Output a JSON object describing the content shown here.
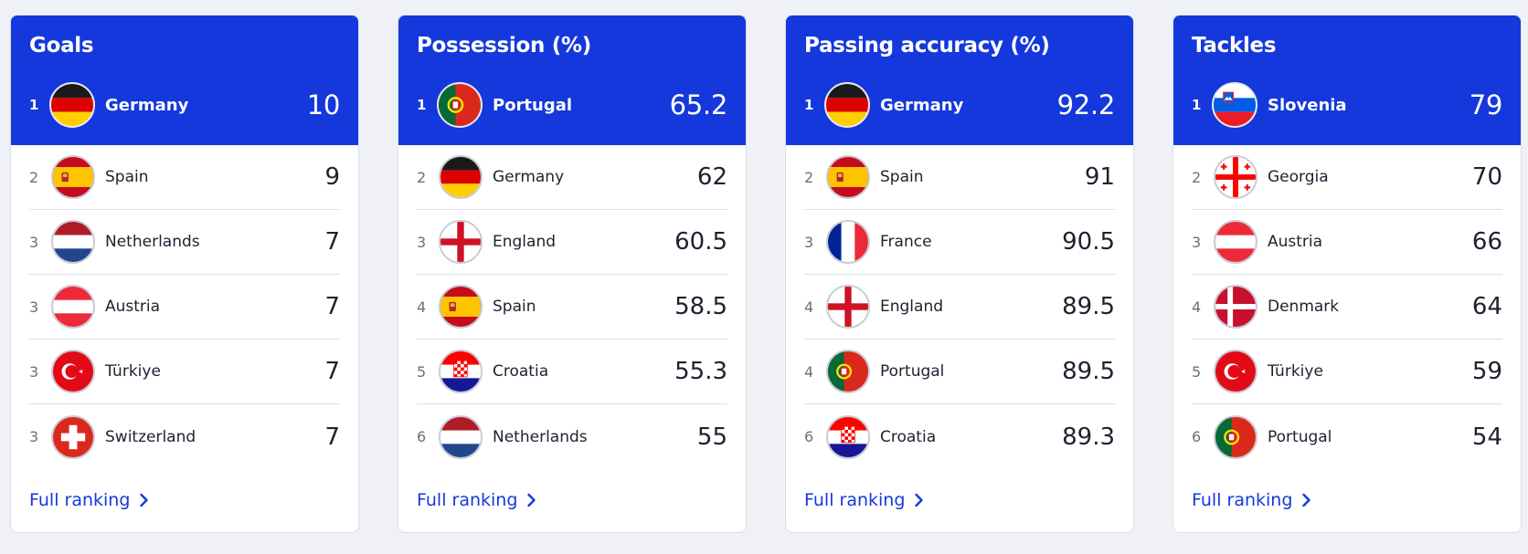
{
  "cards": [
    {
      "title": "Goals",
      "leader": {
        "rank": "1",
        "team": "Germany",
        "flag": "germany",
        "value": "10"
      },
      "rows": [
        {
          "rank": "2",
          "team": "Spain",
          "flag": "spain",
          "value": "9"
        },
        {
          "rank": "3",
          "team": "Netherlands",
          "flag": "netherlands",
          "value": "7"
        },
        {
          "rank": "3",
          "team": "Austria",
          "flag": "austria",
          "value": "7"
        },
        {
          "rank": "3",
          "team": "Türkiye",
          "flag": "turkiye",
          "value": "7"
        },
        {
          "rank": "3",
          "team": "Switzerland",
          "flag": "switzerland",
          "value": "7"
        }
      ],
      "link": "Full ranking"
    },
    {
      "title": "Possession (%)",
      "leader": {
        "rank": "1",
        "team": "Portugal",
        "flag": "portugal",
        "value": "65.2"
      },
      "rows": [
        {
          "rank": "2",
          "team": "Germany",
          "flag": "germany",
          "value": "62"
        },
        {
          "rank": "3",
          "team": "England",
          "flag": "england",
          "value": "60.5"
        },
        {
          "rank": "4",
          "team": "Spain",
          "flag": "spain",
          "value": "58.5"
        },
        {
          "rank": "5",
          "team": "Croatia",
          "flag": "croatia",
          "value": "55.3"
        },
        {
          "rank": "6",
          "team": "Netherlands",
          "flag": "netherlands",
          "value": "55"
        }
      ],
      "link": "Full ranking"
    },
    {
      "title": "Passing accuracy (%)",
      "leader": {
        "rank": "1",
        "team": "Germany",
        "flag": "germany",
        "value": "92.2"
      },
      "rows": [
        {
          "rank": "2",
          "team": "Spain",
          "flag": "spain",
          "value": "91"
        },
        {
          "rank": "3",
          "team": "France",
          "flag": "france",
          "value": "90.5"
        },
        {
          "rank": "4",
          "team": "England",
          "flag": "england",
          "value": "89.5"
        },
        {
          "rank": "4",
          "team": "Portugal",
          "flag": "portugal",
          "value": "89.5"
        },
        {
          "rank": "6",
          "team": "Croatia",
          "flag": "croatia",
          "value": "89.3"
        }
      ],
      "link": "Full ranking"
    },
    {
      "title": "Tackles",
      "leader": {
        "rank": "1",
        "team": "Slovenia",
        "flag": "slovenia",
        "value": "79"
      },
      "rows": [
        {
          "rank": "2",
          "team": "Georgia",
          "flag": "georgia",
          "value": "70"
        },
        {
          "rank": "3",
          "team": "Austria",
          "flag": "austria",
          "value": "66"
        },
        {
          "rank": "4",
          "team": "Denmark",
          "flag": "denmark",
          "value": "64"
        },
        {
          "rank": "5",
          "team": "Türkiye",
          "flag": "turkiye",
          "value": "59"
        },
        {
          "rank": "6",
          "team": "Portugal",
          "flag": "portugal",
          "value": "54"
        }
      ],
      "link": "Full ranking"
    }
  ],
  "colors": {
    "header": "#1438dc",
    "link": "#1438dc",
    "page": "#f0f1f6"
  }
}
